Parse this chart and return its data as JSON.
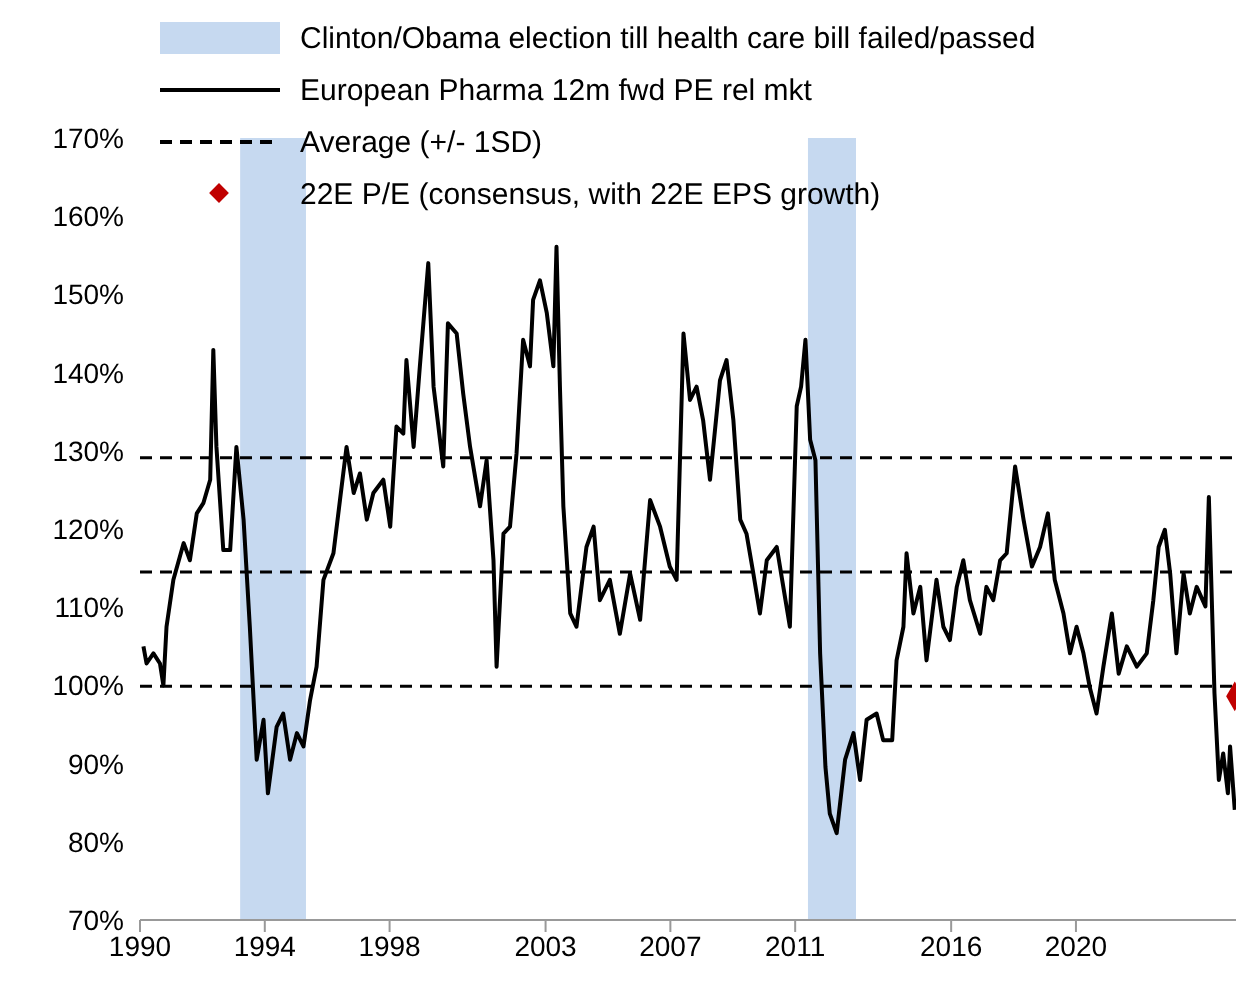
{
  "chart_data": {
    "type": "line",
    "legend": "top",
    "xlim": [
      1990,
      2025.13
    ],
    "xticks": [
      1990,
      1994,
      1998,
      2003,
      2007,
      2011,
      2016,
      2020
    ],
    "ylim": [
      70,
      170
    ],
    "yticks": [
      {
        "value": 70,
        "label": "70%"
      },
      {
        "value": 80,
        "label": "80%"
      },
      {
        "value": 90,
        "label": "90%"
      },
      {
        "value": 100,
        "label": "100%"
      },
      {
        "value": 110,
        "label": "110%"
      },
      {
        "value": 120,
        "label": "120%"
      },
      {
        "value": 130,
        "label": "130%"
      },
      {
        "value": 140,
        "label": "140%"
      },
      {
        "value": 150,
        "label": "150%"
      },
      {
        "value": 160,
        "label": "160%"
      },
      {
        "value": 170,
        "label": "170%"
      }
    ],
    "bands": [
      {
        "axis": "x",
        "from": 1993.21,
        "to": 1995.32,
        "label": "Clinton/Obama election till health care bill failed/passed",
        "color": "#c6d9f0"
      },
      {
        "axis": "x",
        "from": 2011.41,
        "to": 2012.95,
        "color": "#c6d9f0"
      }
    ],
    "ref_lines": [
      {
        "axis": "y",
        "value": 114.5,
        "label": "Average (+/- 1SD)",
        "color": "#000000",
        "line_style": "dashed"
      },
      {
        "axis": "y",
        "value": 129.1,
        "color": "#000000",
        "line_style": "dashed"
      },
      {
        "axis": "y",
        "value": 99.9,
        "color": "#000000",
        "line_style": "dashed"
      }
    ],
    "series": [
      {
        "name": "European Pharma 12m fwd PE rel mkt",
        "type": "line",
        "color": "#000000",
        "marker": "none",
        "line_style": "solid",
        "x": [
          1990.11,
          1990.21,
          1990.43,
          1990.64,
          1990.75,
          1990.85,
          1991.07,
          1991.4,
          1991.6,
          1991.82,
          1992.03,
          1992.25,
          1992.35,
          1992.45,
          1992.67,
          1992.89,
          1993.09,
          1993.32,
          1993.52,
          1993.74,
          1993.96,
          1994.1,
          1994.38,
          1994.59,
          1994.81,
          1995.03,
          1995.24,
          1995.45,
          1995.66,
          1995.88,
          1996.2,
          1996.41,
          1996.62,
          1996.85,
          1997.05,
          1997.27,
          1997.48,
          1997.8,
          1998.02,
          1998.22,
          1998.44,
          1998.54,
          1998.77,
          1998.97,
          1999.24,
          1999.41,
          1999.72,
          1999.87,
          2000.15,
          2000.36,
          2000.58,
          2000.9,
          2001.11,
          2001.33,
          2001.43,
          2001.65,
          2001.86,
          2002.07,
          2002.28,
          2002.5,
          2002.6,
          2002.82,
          2003.04,
          2003.25,
          2003.35,
          2003.46,
          2003.57,
          2003.79,
          2003.99,
          2004.31,
          2004.54,
          2004.74,
          2005.06,
          2005.38,
          2005.71,
          2006.03,
          2006.35,
          2006.67,
          2006.98,
          2007.2,
          2007.42,
          2007.63,
          2007.84,
          2008.05,
          2008.27,
          2008.59,
          2008.8,
          2009.02,
          2009.24,
          2009.44,
          2009.66,
          2009.87,
          2010.09,
          2010.41,
          2010.62,
          2010.83,
          2011.05,
          2011.19,
          2011.33,
          2011.48,
          2011.65,
          2011.8,
          2011.97,
          2012.11,
          2012.33,
          2012.6,
          2012.87,
          2013.08,
          2013.29,
          2013.61,
          2013.82,
          2014.11,
          2014.25,
          2014.47,
          2014.57,
          2014.79,
          2015.01,
          2015.21,
          2015.53,
          2015.75,
          2015.96,
          2016.18,
          2016.39,
          2016.6,
          2016.93,
          2017.13,
          2017.35,
          2017.57,
          2017.78,
          2018.05,
          2018.32,
          2018.59,
          2018.85,
          2019.1,
          2019.32,
          2019.6,
          2019.81,
          2020.02,
          2020.24,
          2020.44,
          2020.66,
          2020.88,
          2021.15,
          2021.37,
          2021.63,
          2021.95,
          2022.27,
          2022.48,
          2022.65,
          2022.85,
          2023.02,
          2023.22,
          2023.45,
          2023.65,
          2023.87,
          2024.15,
          2024.26,
          2024.44,
          2024.58,
          2024.72,
          2024.87,
          2024.94,
          2025.09
        ],
        "values": [
          105,
          102.8,
          104.1,
          102.8,
          100,
          107.5,
          113.5,
          118.2,
          116,
          122,
          123.3,
          126.3,
          142.9,
          130.5,
          117.3,
          117.3,
          130.5,
          121.2,
          107.5,
          90.5,
          95.6,
          86.2,
          94.7,
          96.4,
          90.5,
          93.9,
          92.2,
          98.1,
          102.4,
          113.5,
          116.9,
          123.7,
          130.5,
          124.6,
          127.1,
          121.2,
          124.6,
          126.3,
          120.3,
          133.1,
          132.2,
          141.6,
          130.5,
          140.8,
          154,
          138.2,
          128,
          146.3,
          145,
          137.3,
          130.5,
          122.9,
          128.8,
          116,
          102.4,
          119.4,
          120.3,
          129.7,
          144.2,
          140.8,
          149.3,
          151.8,
          147.6,
          140.8,
          156.1,
          138.2,
          122.9,
          109.2,
          107.5,
          117.7,
          120.3,
          110.9,
          113.5,
          106.6,
          114.3,
          108.4,
          123.7,
          120.3,
          115.2,
          113.5,
          145,
          136.5,
          138.2,
          133.9,
          126.3,
          139,
          141.6,
          133.9,
          121.2,
          119.4,
          114.3,
          109.2,
          116,
          117.7,
          112.6,
          107.5,
          135.7,
          138.2,
          144.2,
          131.4,
          128.8,
          104.1,
          89.6,
          83.6,
          81.1,
          90.5,
          93.9,
          87.9,
          95.6,
          96.4,
          93,
          93,
          103.2,
          107.5,
          116.9,
          109.2,
          112.6,
          103.2,
          113.5,
          107.5,
          105.8,
          112.6,
          116,
          110.9,
          106.6,
          112.6,
          110.9,
          116,
          116.9,
          128,
          121.2,
          115.2,
          117.7,
          122,
          113.5,
          109.2,
          104.1,
          107.5,
          104.1,
          99.8,
          96.4,
          102.4,
          109.2,
          101.5,
          105,
          102.4,
          104.1,
          110.9,
          117.7,
          119.9,
          114.3,
          104.1,
          114.3,
          109.2,
          112.6,
          110.1,
          124.1,
          99,
          87.9,
          91.3,
          86.2,
          92.2,
          84.1
        ]
      },
      {
        "name": "22E P/E (consensus, with 22E EPS growth)",
        "type": "scatter",
        "color": "#c00000",
        "marker": "diamond",
        "x": [
          2025.09
        ],
        "values": [
          98.6
        ]
      }
    ]
  }
}
